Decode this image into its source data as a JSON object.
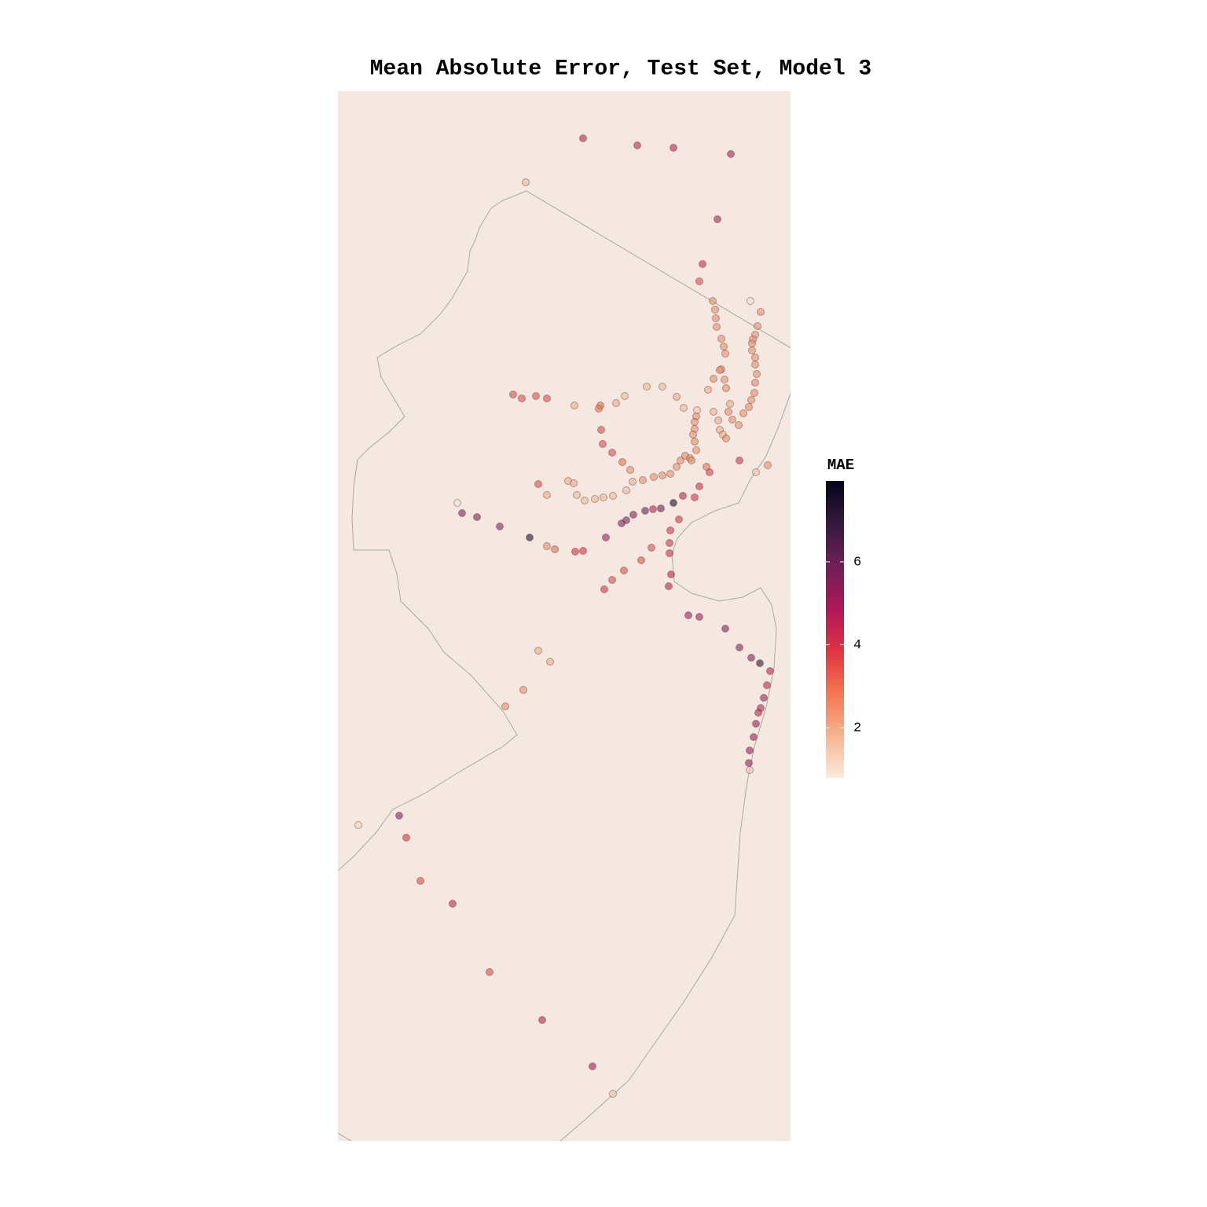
{
  "chart_data": {
    "type": "scatter_map",
    "title": "Mean Absolute Error, Test Set, Model 3",
    "colorbar_title": "MAE",
    "xlim": [
      -75.58,
      -73.852
    ],
    "ylim": [
      38.93,
      41.602
    ],
    "clim": [
      0.79,
      7.95
    ],
    "cticks": [
      2,
      4,
      6
    ],
    "colorscale": [
      "#faebdd",
      "#f6b48e",
      "#f37651",
      "#e13342",
      "#ad1759",
      "#701f57",
      "#35193e",
      "#03051a"
    ],
    "x": [
      -74.644,
      -74.437,
      -74.299,
      -74.08,
      -74.863,
      -74.131,
      -74.188,
      -74.2,
      -74.149,
      -74.14,
      -74.137,
      -74.134,
      -74.116,
      -74.107,
      -74.101,
      -74.116,
      -74.122,
      -74.146,
      -74.104,
      -74.098,
      -74.167,
      -74.005,
      -73.966,
      -73.978,
      -73.987,
      -73.996,
      -73.999,
      -73.999,
      -73.987,
      -73.987,
      -73.981,
      -73.987,
      -73.99,
      -74.002,
      -74.011,
      -74.032,
      -74.083,
      -74.089,
      -74.074,
      -74.128,
      -74.146,
      -74.122,
      -74.11,
      -74.098,
      -74.05,
      -74.209,
      -74.212,
      -74.218,
      -74.218,
      -74.224,
      -74.218,
      -74.212,
      -74.26,
      -74.287,
      -74.341,
      -74.401,
      -74.485,
      -74.518,
      -74.578,
      -74.584,
      -74.677,
      -74.782,
      -74.824,
      -74.878,
      -74.911,
      -74.575,
      -74.569,
      -74.533,
      -74.494,
      -74.464,
      -74.455,
      -74.416,
      -74.374,
      -74.341,
      -74.311,
      -74.287,
      -74.272,
      -74.254,
      -74.236,
      -74.23,
      -74.173,
      -74.161,
      -74.047,
      -73.984,
      -73.939,
      -74.815,
      -74.701,
      -74.68,
      -74.782,
      -74.668,
      -74.638,
      -74.599,
      -74.566,
      -74.53,
      -74.479,
      -75.124,
      -75.106,
      -75.049,
      -74.962,
      -74.848,
      -74.782,
      -74.752,
      -74.674,
      -74.644,
      -74.557,
      -74.497,
      -74.479,
      -74.452,
      -74.407,
      -74.377,
      -74.347,
      -74.299,
      -74.263,
      -74.218,
      -74.2,
      -74.278,
      -74.311,
      -74.314,
      -74.314,
      -74.308,
      -74.317,
      -74.383,
      -74.422,
      -74.488,
      -74.533,
      -74.563,
      -74.242,
      -74.2,
      -74.101,
      -74.047,
      -74.002,
      -73.969,
      -73.93,
      -73.942,
      -73.954,
      -73.966,
      -73.975,
      -73.984,
      -73.993,
      -74.008,
      -74.011,
      -74.008,
      -74.815,
      -74.77,
      -74.872,
      -74.941,
      -75.346,
      -75.502,
      -75.319,
      -75.265,
      -75.142,
      -75.001,
      -74.8,
      -74.608,
      -74.53
    ],
    "y": [
      41.482,
      41.464,
      41.458,
      41.442,
      41.37,
      41.276,
      41.162,
      41.118,
      41.068,
      41.046,
      41.024,
      41.002,
      40.972,
      40.952,
      40.934,
      40.894,
      40.892,
      40.87,
      40.868,
      40.846,
      40.842,
      41.068,
      41.04,
      41.004,
      40.982,
      40.97,
      40.96,
      40.942,
      40.924,
      40.906,
      40.882,
      40.86,
      40.834,
      40.816,
      40.798,
      40.782,
      40.806,
      40.786,
      40.766,
      40.764,
      40.786,
      40.74,
      40.728,
      40.718,
      40.752,
      40.79,
      40.774,
      40.76,
      40.742,
      40.728,
      40.71,
      40.688,
      40.796,
      40.824,
      40.85,
      40.85,
      40.826,
      40.808,
      40.802,
      40.794,
      40.802,
      40.82,
      40.826,
      40.82,
      40.83,
      40.74,
      40.704,
      40.682,
      40.658,
      40.638,
      40.608,
      40.612,
      40.62,
      40.624,
      40.628,
      40.646,
      40.662,
      40.674,
      40.668,
      40.662,
      40.646,
      40.632,
      40.662,
      40.632,
      40.65,
      40.602,
      40.61,
      40.604,
      40.574,
      40.574,
      40.56,
      40.564,
      40.568,
      40.572,
      40.586,
      40.554,
      40.528,
      40.518,
      40.494,
      40.466,
      40.444,
      40.436,
      40.43,
      40.432,
      40.466,
      40.502,
      40.51,
      40.524,
      40.534,
      40.538,
      40.54,
      40.554,
      40.572,
      40.568,
      40.596,
      40.512,
      40.484,
      40.452,
      40.426,
      40.372,
      40.342,
      40.44,
      40.408,
      40.382,
      40.358,
      40.334,
      40.268,
      40.264,
      40.234,
      40.186,
      40.16,
      40.146,
      40.126,
      40.09,
      40.058,
      40.032,
      40.02,
      39.992,
      39.958,
      39.924,
      39.892,
      39.874,
      40.178,
      40.15,
      40.078,
      40.036,
      39.758,
      39.734,
      39.702,
      39.592,
      39.534,
      39.36,
      39.238,
      39.12,
      39.05
    ],
    "values": [
      4.5,
      4.5,
      4.5,
      4.8,
      1.8,
      4.8,
      4.3,
      3.5,
      2.5,
      2.5,
      2.5,
      2.5,
      2.5,
      2.5,
      2.5,
      2.5,
      2.5,
      2.5,
      2.5,
      2.5,
      2.0,
      1.0,
      2.5,
      2.5,
      2.5,
      2.5,
      2.5,
      2.5,
      2.5,
      2.5,
      2.5,
      2.5,
      2.5,
      2.5,
      2.5,
      2.5,
      2.0,
      2.5,
      2.5,
      2.0,
      2.0,
      2.0,
      2.0,
      2.5,
      2.5,
      1.5,
      2.5,
      2.5,
      2.5,
      2.5,
      2.5,
      2.5,
      1.8,
      2.0,
      1.8,
      1.8,
      1.8,
      2.0,
      3.0,
      3.0,
      2.0,
      3.5,
      3.5,
      3.5,
      3.5,
      3.5,
      3.5,
      3.5,
      3.0,
      2.5,
      2.0,
      2.5,
      2.5,
      2.5,
      2.5,
      2.5,
      2.5,
      2.5,
      2.5,
      2.5,
      3.0,
      3.8,
      4.0,
      1.5,
      2.5,
      3.5,
      2.0,
      2.0,
      2.0,
      1.8,
      1.8,
      1.8,
      1.8,
      1.8,
      1.8,
      1.0,
      5.5,
      5.5,
      5.5,
      7.5,
      2.5,
      3.0,
      4.0,
      4.0,
      5.0,
      5.5,
      5.5,
      5.5,
      6.0,
      4.5,
      6.0,
      7.5,
      4.5,
      4.0,
      4.0,
      4.0,
      4.0,
      4.0,
      4.0,
      4.5,
      4.5,
      3.5,
      3.5,
      3.5,
      3.5,
      4.0,
      5.0,
      5.0,
      5.5,
      5.5,
      5.5,
      7.0,
      4.5,
      4.5,
      5.0,
      4.5,
      4.5,
      5.0,
      5.0,
      5.0,
      5.0,
      1.5,
      2.0,
      2.0,
      2.5,
      2.5,
      5.5,
      1.2,
      4.0,
      3.5,
      4.5,
      3.5,
      4.5,
      5.0,
      1.5
    ]
  }
}
